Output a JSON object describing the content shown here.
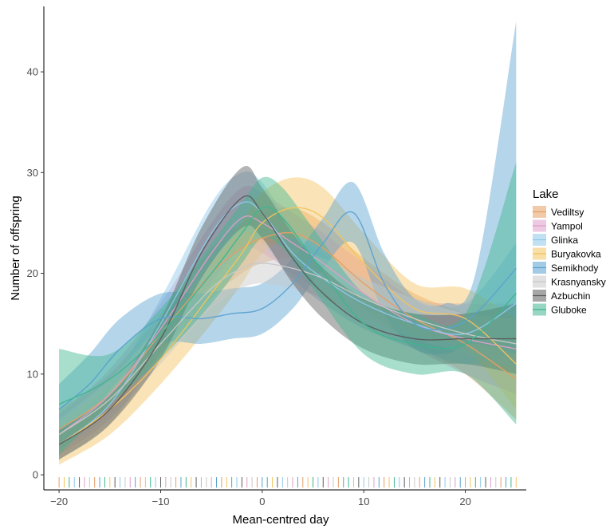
{
  "chart_data": {
    "type": "line",
    "xlabel": "Mean-centred day",
    "ylabel": "Number of offspring",
    "xlim": [
      -21.5,
      26
    ],
    "ylim": [
      -1.5,
      46.5
    ],
    "x_ticks": [
      -20,
      -10,
      0,
      10,
      20
    ],
    "x_tick_labels": [
      "−20",
      "−10",
      "0",
      "10",
      "20"
    ],
    "y_ticks": [
      0,
      10,
      20,
      30,
      40
    ],
    "y_tick_labels": [
      "0",
      "10",
      "20",
      "30",
      "40"
    ],
    "grid": false,
    "legend": {
      "title": "Lake",
      "placement": "right"
    },
    "series": [
      {
        "name": "Vediltsy",
        "color": "#e69f65",
        "x": [
          -20,
          -15,
          -10,
          -5,
          -2,
          0,
          3,
          6,
          10,
          15,
          20,
          25
        ],
        "y": [
          4.5,
          8,
          14,
          20,
          22.5,
          23.5,
          24,
          22.5,
          19,
          15.5,
          13,
          9.5
        ],
        "lower": [
          2.5,
          6,
          12,
          17.5,
          20,
          21,
          21.5,
          20,
          16.5,
          13,
          10,
          5.5
        ],
        "upper": [
          6.5,
          10,
          16,
          22.5,
          25,
          26,
          26.5,
          25,
          21.5,
          18,
          16,
          13.5
        ]
      },
      {
        "name": "Yampol",
        "color": "#df9ec8",
        "x": [
          -20,
          -15,
          -10,
          -5,
          -2,
          0,
          3,
          6,
          10,
          15,
          20,
          25
        ],
        "y": [
          4,
          8,
          14.5,
          22,
          25.5,
          25,
          23,
          21,
          18,
          15,
          13.5,
          12.5
        ],
        "lower": [
          2,
          5.5,
          12,
          19,
          22.5,
          22,
          20,
          18,
          15,
          12.5,
          10,
          8
        ],
        "upper": [
          6,
          10.5,
          17,
          25,
          28.5,
          28,
          26,
          24,
          21,
          17.5,
          17,
          17
        ]
      },
      {
        "name": "Glinka",
        "color": "#8ec8ea",
        "x": [
          -20,
          -15,
          -10,
          -5,
          -2,
          0,
          3,
          6,
          10,
          15,
          20,
          25
        ],
        "y": [
          3,
          7,
          15,
          24,
          27,
          26,
          22,
          19.5,
          17,
          15,
          14,
          17
        ],
        "lower": [
          1.5,
          5,
          12.5,
          21,
          24,
          23,
          19.5,
          17,
          14.5,
          12.5,
          11,
          12
        ],
        "upper": [
          4.5,
          9,
          17.5,
          27,
          30,
          29,
          24.5,
          22,
          19.5,
          17.5,
          17,
          23
        ]
      },
      {
        "name": "Buryakovka",
        "color": "#f3c35f",
        "x": [
          -20,
          -15,
          -10,
          -5,
          -2,
          0,
          3,
          6,
          10,
          15,
          20,
          25
        ],
        "y": [
          3,
          6.5,
          11.5,
          18,
          22,
          25,
          26.5,
          25.5,
          21,
          16.5,
          15.5,
          11
        ],
        "lower": [
          1,
          4,
          9,
          15,
          19,
          22,
          23.5,
          22.5,
          18,
          14,
          12.5,
          6.5
        ],
        "upper": [
          5,
          9,
          14,
          21,
          25,
          28,
          29.5,
          28.5,
          24,
          19,
          18.5,
          15.5
        ]
      },
      {
        "name": "Semikhody",
        "color": "#5aa1d0",
        "x": [
          -20,
          -17,
          -14,
          -10,
          -6,
          -3,
          0,
          3,
          6,
          9,
          12,
          15,
          18,
          21,
          25
        ],
        "y": [
          6.5,
          9,
          12.5,
          15.5,
          15.5,
          16,
          16.5,
          19,
          23,
          26,
          19,
          15,
          14.5,
          16,
          20.5
        ],
        "lower": [
          4,
          6,
          9.5,
          13,
          13,
          13.5,
          14,
          16.5,
          20.5,
          23,
          16,
          12.5,
          12,
          13,
          12
        ],
        "upper": [
          9,
          12,
          15.5,
          18,
          18,
          18.5,
          19,
          21.5,
          25.5,
          29,
          22,
          17.5,
          17,
          20,
          45
        ]
      },
      {
        "name": "Krasnyansky",
        "color": "#c8c8c8",
        "x": [
          -20,
          -15,
          -10,
          -5,
          -2,
          0,
          3,
          6,
          10,
          15,
          20,
          25
        ],
        "y": [
          4,
          7.5,
          13,
          18.5,
          20.5,
          21,
          20.5,
          19.5,
          17.5,
          15.5,
          14,
          13
        ],
        "lower": [
          2.5,
          5.5,
          11,
          16.5,
          18.5,
          19,
          18.5,
          17.5,
          15.5,
          13.5,
          12,
          10.5
        ],
        "upper": [
          5.5,
          9.5,
          15,
          20.5,
          22.5,
          23,
          22.5,
          21.5,
          19.5,
          17.5,
          16,
          15.5
        ]
      },
      {
        "name": "Azbuchin",
        "color": "#5c5c5c",
        "x": [
          -20,
          -15,
          -10,
          -6,
          -2,
          0,
          3,
          6,
          10,
          15,
          20,
          25
        ],
        "y": [
          3,
          6.5,
          13.5,
          22,
          27.5,
          26,
          21.5,
          18,
          15,
          13.5,
          13.5,
          13.5
        ],
        "lower": [
          1.5,
          5,
          11.5,
          19.5,
          24.5,
          23.5,
          19,
          15.5,
          12.5,
          11,
          11,
          10
        ],
        "upper": [
          4.5,
          8,
          15.5,
          24.5,
          30.5,
          28.5,
          24,
          20.5,
          17.5,
          16,
          16,
          17
        ]
      },
      {
        "name": "Gluboke",
        "color": "#3fb58f",
        "x": [
          -20,
          -15,
          -10,
          -5,
          -2,
          0,
          2,
          5,
          10,
          15,
          20,
          25
        ],
        "y": [
          7,
          9.5,
          14,
          20,
          24,
          26.5,
          25.5,
          21.5,
          15,
          13,
          13,
          18
        ],
        "lower": [
          2,
          7,
          11.5,
          17,
          21,
          23.5,
          22.5,
          18.5,
          12,
          10,
          10,
          5
        ],
        "upper": [
          12.5,
          12,
          16.5,
          23,
          27,
          29.5,
          28.5,
          24.5,
          18,
          16,
          16,
          31
        ]
      }
    ],
    "rug": {
      "x_min": -20,
      "x_max": 25,
      "step": 0.5
    }
  }
}
